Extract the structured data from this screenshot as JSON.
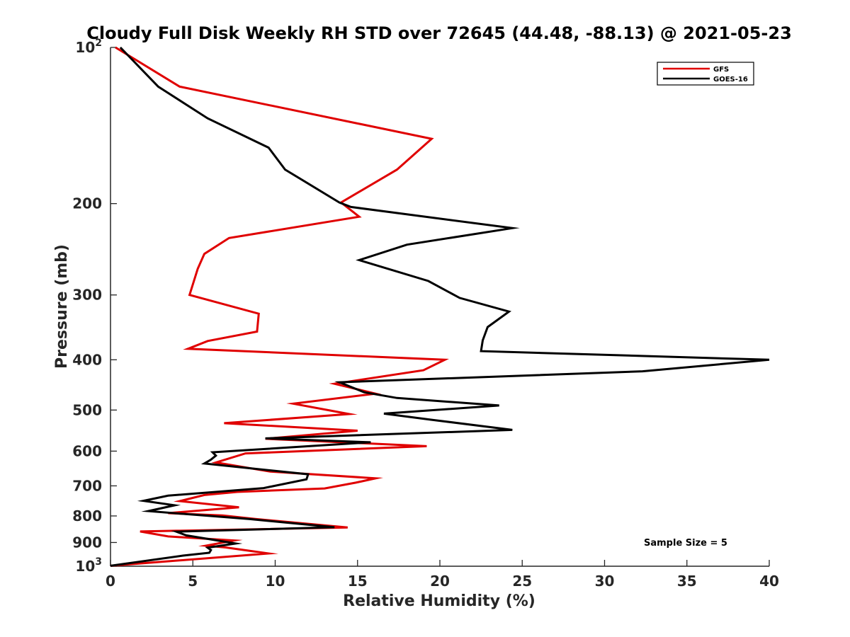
{
  "chart_data": {
    "type": "line",
    "title": "Cloudy Full Disk Weekly RH STD over 72645 (44.48, -88.13) @ 2021-05-23",
    "xlabel": "Relative Humidity (%)",
    "ylabel": "Pressure (mb)",
    "xlim": [
      0,
      40
    ],
    "ylim": [
      100,
      1000
    ],
    "yscale": "log",
    "y_reversed": true,
    "grid": false,
    "legend_position": "top-right",
    "x_ticks": [
      {
        "value": 0,
        "label": "0"
      },
      {
        "value": 5,
        "label": "5"
      },
      {
        "value": 10,
        "label": "10"
      },
      {
        "value": 15,
        "label": "15"
      },
      {
        "value": 20,
        "label": "20"
      },
      {
        "value": 25,
        "label": "25"
      },
      {
        "value": 30,
        "label": "30"
      },
      {
        "value": 35,
        "label": "35"
      },
      {
        "value": 40,
        "label": "40"
      }
    ],
    "y_ticks": [
      {
        "value": 100,
        "base": "10",
        "exp": "2"
      },
      {
        "value": 200,
        "label": "200"
      },
      {
        "value": 300,
        "label": "300"
      },
      {
        "value": 400,
        "label": "400"
      },
      {
        "value": 500,
        "label": "500"
      },
      {
        "value": 600,
        "label": "600"
      },
      {
        "value": 700,
        "label": "700"
      },
      {
        "value": 800,
        "label": "800"
      },
      {
        "value": 900,
        "label": "900"
      },
      {
        "value": 1000,
        "base": "10",
        "exp": "3"
      }
    ],
    "series": [
      {
        "name": "GFS",
        "color": "#e00000",
        "points": [
          [
            0.3,
            100
          ],
          [
            4.2,
            119
          ],
          [
            19.5,
            150
          ],
          [
            17.4,
            172
          ],
          [
            14.0,
            199
          ],
          [
            15.1,
            212
          ],
          [
            7.2,
            233
          ],
          [
            5.7,
            250
          ],
          [
            5.3,
            267
          ],
          [
            4.8,
            300
          ],
          [
            9.0,
            326
          ],
          [
            8.9,
            353
          ],
          [
            5.9,
            368
          ],
          [
            4.7,
            381
          ],
          [
            20.3,
            400
          ],
          [
            19.0,
            419
          ],
          [
            13.6,
            445
          ],
          [
            16.1,
            465
          ],
          [
            11.1,
            486
          ],
          [
            14.5,
            509
          ],
          [
            6.9,
            530
          ],
          [
            15.0,
            548
          ],
          [
            9.4,
            568
          ],
          [
            19.2,
            587
          ],
          [
            8.2,
            606
          ],
          [
            6.4,
            631
          ],
          [
            9.7,
            657
          ],
          [
            16.1,
            677
          ],
          [
            14.9,
            690
          ],
          [
            13.0,
            708
          ],
          [
            7.7,
            719
          ],
          [
            5.7,
            729
          ],
          [
            4.2,
            749
          ],
          [
            7.8,
            770
          ],
          [
            3.5,
            790
          ],
          [
            6.8,
            798
          ],
          [
            8.8,
            811
          ],
          [
            14.4,
            842
          ],
          [
            1.8,
            857
          ],
          [
            3.5,
            876
          ],
          [
            7.5,
            892
          ],
          [
            5.8,
            913
          ],
          [
            7.0,
            920
          ],
          [
            9.6,
            945
          ],
          [
            0,
            998
          ]
        ]
      },
      {
        "name": "GOES-16",
        "color": "#000000",
        "points": [
          [
            0.6,
            100
          ],
          [
            2.9,
            119
          ],
          [
            5.9,
            137
          ],
          [
            9.6,
            156
          ],
          [
            10.6,
            172
          ],
          [
            13.9,
            199
          ],
          [
            14.6,
            203
          ],
          [
            24.4,
            223
          ],
          [
            18.0,
            240
          ],
          [
            15.1,
            257
          ],
          [
            19.3,
            282
          ],
          [
            21.2,
            304
          ],
          [
            24.2,
            323
          ],
          [
            22.9,
            346
          ],
          [
            22.6,
            367
          ],
          [
            22.5,
            385
          ],
          [
            40,
            400
          ],
          [
            32.3,
            421
          ],
          [
            13.9,
            442
          ],
          [
            15.4,
            462
          ],
          [
            17.4,
            474
          ],
          [
            23.6,
            490
          ],
          [
            16.6,
            508
          ],
          [
            19.5,
            522
          ],
          [
            24.4,
            546
          ],
          [
            9.4,
            567
          ],
          [
            15.8,
            577
          ],
          [
            6.2,
            603
          ],
          [
            6.4,
            612
          ],
          [
            6.1,
            623
          ],
          [
            5.7,
            634
          ],
          [
            12.0,
            665
          ],
          [
            11.9,
            680
          ],
          [
            9.3,
            707
          ],
          [
            3.5,
            731
          ],
          [
            2.0,
            748
          ],
          [
            3.9,
            763
          ],
          [
            2.3,
            783
          ],
          [
            8.4,
            811
          ],
          [
            13.6,
            841
          ],
          [
            4.0,
            858
          ],
          [
            4.6,
            872
          ],
          [
            6.2,
            889
          ],
          [
            7.6,
            904
          ],
          [
            5.9,
            921
          ],
          [
            6.1,
            931
          ],
          [
            6.0,
            942
          ],
          [
            4.4,
            954
          ],
          [
            0,
            998
          ]
        ]
      }
    ],
    "annotation": "Sample Size = 5"
  }
}
